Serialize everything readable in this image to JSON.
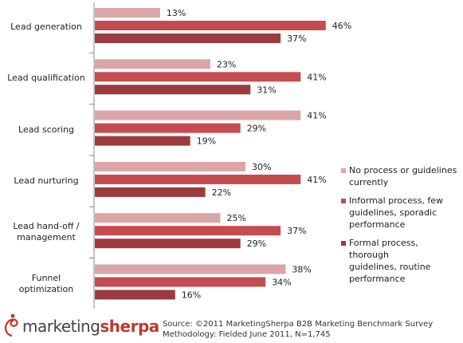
{
  "chart_data": {
    "type": "bar",
    "orientation": "horizontal",
    "categories": [
      "Lead generation",
      "Lead qualification",
      "Lead scoring",
      "Lead nurturing",
      "Lead hand-off / management",
      "Funnel optimization"
    ],
    "series": [
      {
        "name": "No process or guidelines currently",
        "color": "#dba5a8",
        "values": [
          13,
          23,
          41,
          30,
          25,
          38
        ],
        "labels": [
          "13%",
          "23%",
          "41%",
          "30%",
          "25%",
          "38%"
        ]
      },
      {
        "name": "Informal process, few guidelines, sporadic performance",
        "color": "#c44c50",
        "values": [
          46,
          41,
          29,
          41,
          37,
          34
        ],
        "labels": [
          "46%",
          "41%",
          "29%",
          "41%",
          "37%",
          "34%"
        ]
      },
      {
        "name": "Formal process, thorough guidelines, routine performance",
        "color": "#9b3b3e",
        "values": [
          37,
          31,
          19,
          22,
          29,
          16
        ],
        "labels": [
          "37%",
          "31%",
          "19%",
          "22%",
          "29%",
          "16%"
        ]
      }
    ],
    "xlim": [
      0,
      50
    ],
    "grid": false,
    "legend_position": "right"
  },
  "categories_display": [
    {
      "lines": [
        "Lead generation"
      ]
    },
    {
      "lines": [
        "Lead qualification"
      ]
    },
    {
      "lines": [
        "Lead scoring"
      ]
    },
    {
      "lines": [
        "Lead nurturing"
      ]
    },
    {
      "lines": [
        "Lead hand-off /",
        "management"
      ]
    },
    {
      "lines": [
        "Funnel",
        "optimization"
      ]
    }
  ],
  "legend": [
    {
      "lines": [
        "No process or guidelines",
        "currently"
      ],
      "color": "#dba5a8"
    },
    {
      "lines": [
        "Informal process, few",
        "guidelines, sporadic",
        "performance"
      ],
      "color": "#c44c50"
    },
    {
      "lines": [
        "Formal process, thorough",
        "guidelines, routine",
        "performance"
      ],
      "color": "#9b3b3e"
    }
  ],
  "logo": {
    "part1": "marketing",
    "part2": "sherpa"
  },
  "source": {
    "line1": "Source: ©2011 MarketingSherpa B2B Marketing Benchmark Survey",
    "line2": "Methodology: Fielded June 2011, N=1,745"
  }
}
